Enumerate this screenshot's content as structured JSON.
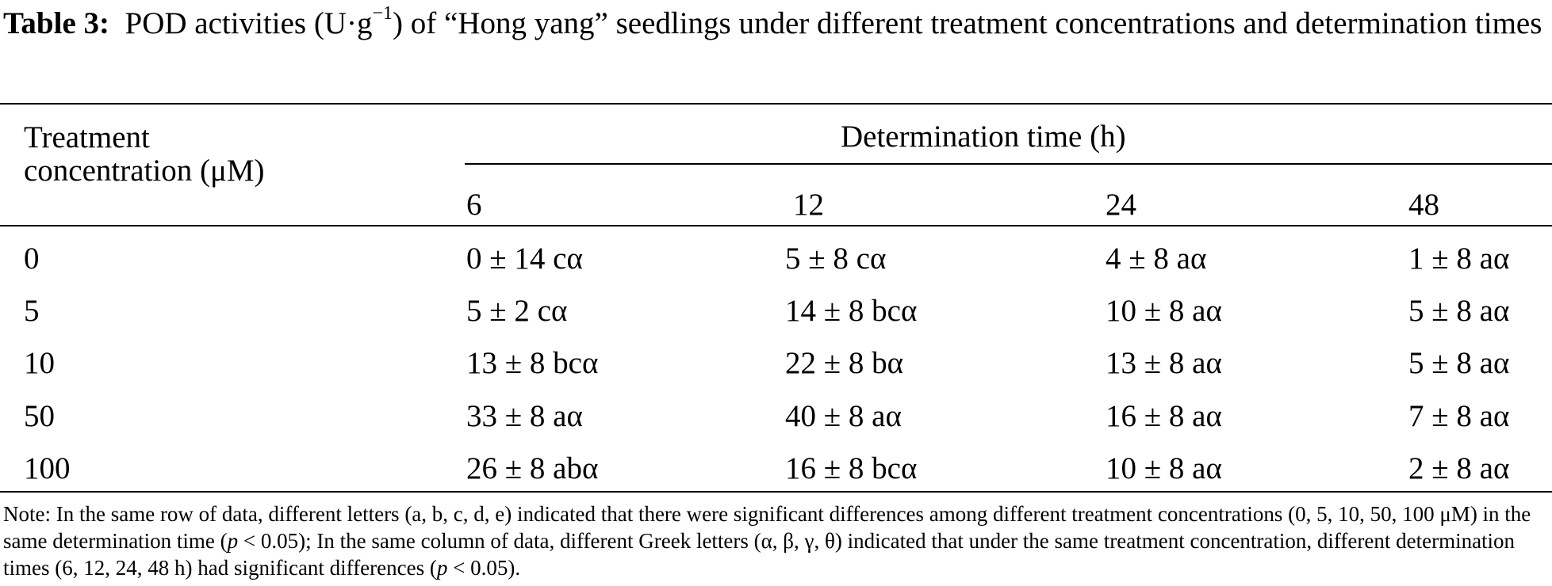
{
  "caption": {
    "label": "Table 3:",
    "text_before_unit": "POD activities (U·g",
    "unit_superscript": "−1",
    "text_after_unit": ") of “Hong yang” seedlings under different treatment concentrations and determination times"
  },
  "table": {
    "stub_header_line1": "Treatment",
    "stub_header_line2": "concentration (μM)",
    "spanner_header": "Determination time (h)",
    "columns": [
      "6",
      "12",
      "24",
      "48"
    ],
    "rows": [
      {
        "concentration": "0",
        "values": [
          "0 ± 14 cα",
          "5 ± 8 cα",
          "4 ± 8 aα",
          "1 ± 8 aα"
        ]
      },
      {
        "concentration": "5",
        "values": [
          "5 ± 2 cα",
          "14 ± 8 bcα",
          "10 ± 8 aα",
          "5 ± 8 aα"
        ]
      },
      {
        "concentration": "10",
        "values": [
          "13 ± 8 bcα",
          "22 ± 8 bα",
          "13 ± 8 aα",
          "5 ± 8 aα"
        ]
      },
      {
        "concentration": "50",
        "values": [
          "33 ± 8 aα",
          "40 ± 8 aα",
          "16 ± 8 aα",
          "7 ± 8 aα"
        ]
      },
      {
        "concentration": "100",
        "values": [
          "26 ± 8 abα",
          "16 ± 8 bcα",
          "10 ± 8 aα",
          "2 ± 8 aα"
        ]
      }
    ]
  },
  "note": {
    "part1": "Note: In the same row of data, different letters (a, b, c, d, e) indicated that there were significant differences among different treatment concentrations (0, 5, 10, 50, 100 μM) in the same determination time (",
    "p1": "p",
    "part2": " < 0.05); In the same column of data, different Greek letters (α, β, γ, θ) indicated that under the same treatment concentration, different determination times (6, 12, 24, 48 h) had significant differences (",
    "p2": "p",
    "part3": " < 0.05)."
  }
}
